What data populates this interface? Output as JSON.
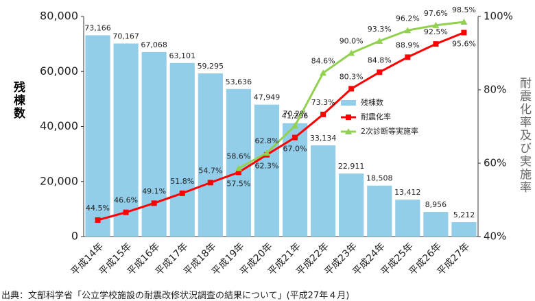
{
  "chart_data": {
    "type": "bar-line",
    "source": "出典：文部科学省「公立学校施設の耐震改修状況調査の結果について」(平成27年４月)",
    "ylabel": "残棟数",
    "y2label": "耐震化率及び実施率",
    "categories": [
      "平成14年",
      "平成15年",
      "平成16年",
      "平成17年",
      "平成18年",
      "平成19年",
      "平成20年",
      "平成21年",
      "平成22年",
      "平成23年",
      "平成24年",
      "平成25年",
      "平成26年",
      "平成27年"
    ],
    "ylim": [
      0,
      80000
    ],
    "yticks": [
      0,
      {
        "value": 20000,
        "label": "20,000"
      },
      {
        "value": 40000,
        "label": "40,000"
      },
      {
        "value": 60000,
        "label": "60,000"
      },
      {
        "value": 80000,
        "label": "80,000"
      }
    ],
    "y2lim": [
      40,
      100
    ],
    "y2ticks": [
      {
        "value": 40,
        "label": "40%"
      },
      {
        "value": 60,
        "label": "60%"
      },
      {
        "value": 80,
        "label": "80%"
      },
      {
        "value": 100,
        "label": "100%"
      }
    ],
    "series": [
      {
        "name": "残棟数",
        "kind": "bar",
        "color": "#92cde9",
        "values": [
          73166,
          70167,
          67068,
          63101,
          59295,
          53636,
          47949,
          41206,
          33134,
          22911,
          18508,
          13412,
          8956,
          5212
        ],
        "value_labels": [
          "73,166",
          "70,167",
          "67,068",
          "63,101",
          "59,295",
          "53,636",
          "47,949",
          "41,206",
          "33,134",
          "22,911",
          "18,508",
          "13,412",
          "8,956",
          "5,212"
        ]
      },
      {
        "name": "耐震化率",
        "kind": "line",
        "axis": "y2",
        "color": "#ff0000",
        "marker": "square",
        "values": [
          44.5,
          46.6,
          49.1,
          51.8,
          54.7,
          57.5,
          62.3,
          67.0,
          73.3,
          80.3,
          84.8,
          88.9,
          92.5,
          95.6
        ],
        "value_labels": [
          "44.5%",
          "46.6%",
          "49.1%",
          "51.8%",
          "54.7%",
          "57.5%",
          "62.3%",
          "67.0%",
          "73.3%",
          "80.3%",
          "84.8%",
          "88.9%",
          "92.5%",
          "95.6%"
        ]
      },
      {
        "name": "2次診断等実施率",
        "kind": "line",
        "axis": "y2",
        "color": "#92d050",
        "marker": "triangle",
        "values": [
          null,
          null,
          null,
          null,
          null,
          58.6,
          62.8,
          70.2,
          84.6,
          90.0,
          93.3,
          96.2,
          97.6,
          98.5
        ],
        "value_labels": [
          null,
          null,
          null,
          null,
          null,
          "58.6%",
          "62.8%",
          "70.2%",
          "84.6%",
          "90.0%",
          "93.3%",
          "96.2%",
          "97.6%",
          "98.5%"
        ]
      }
    ]
  }
}
